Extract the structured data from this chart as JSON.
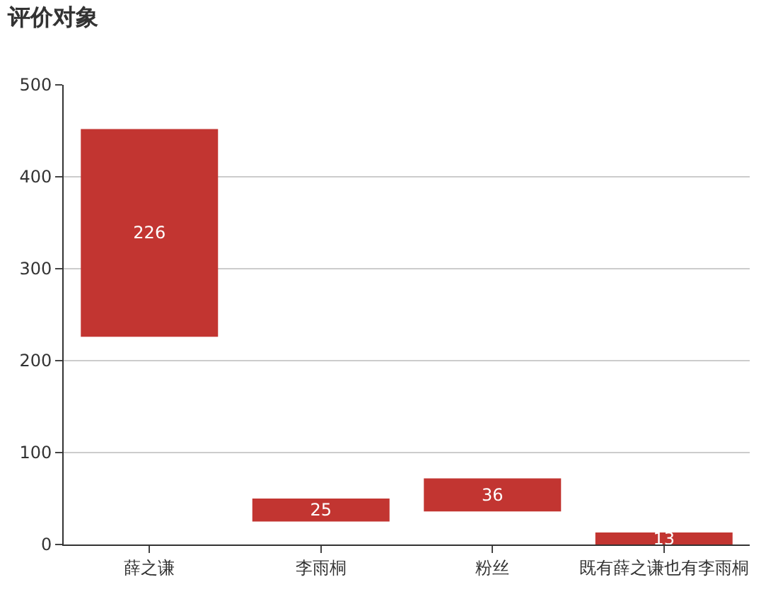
{
  "chart_data": {
    "type": "bar",
    "title": "评价对象",
    "categories": [
      "薛之谦",
      "李雨桐",
      "粉丝",
      "既有薛之谦也有李雨桐"
    ],
    "values": [
      226,
      25,
      36,
      13
    ],
    "base": [
      226,
      25,
      36,
      0
    ],
    "color": "#c23531",
    "data_labels": true,
    "ylim": [
      0,
      500
    ],
    "yticks": [
      0,
      100,
      200,
      300,
      400,
      500
    ],
    "grid": "y"
  }
}
